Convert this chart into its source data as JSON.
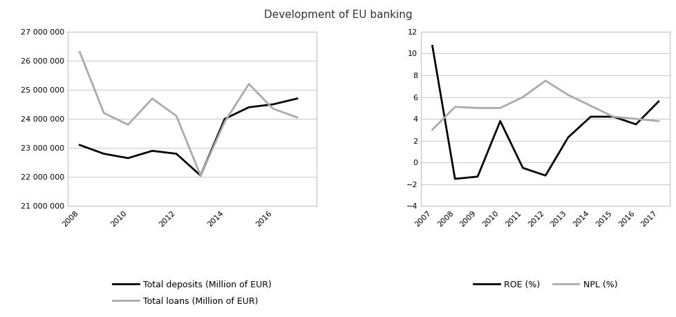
{
  "title": "Development of EU banking",
  "left_chart": {
    "years": [
      2008,
      2009,
      2010,
      2011,
      2012,
      2013,
      2014,
      2015,
      2016,
      2017
    ],
    "deposits": [
      23100000,
      22800000,
      22650000,
      22900000,
      22800000,
      22050000,
      24000000,
      24400000,
      24500000,
      24700000
    ],
    "loans": [
      26300000,
      24200000,
      23800000,
      24700000,
      24100000,
      22050000,
      23900000,
      25200000,
      24350000,
      24050000
    ],
    "deposits_label": "Total deposits (Million of EUR)",
    "loans_label": "Total loans (Million of EUR)",
    "ylim": [
      21000000,
      27000000
    ],
    "yticks": [
      21000000,
      22000000,
      23000000,
      24000000,
      25000000,
      26000000,
      27000000
    ],
    "xticks": [
      2008,
      2010,
      2012,
      2014,
      2016
    ],
    "xlim": [
      2007.5,
      2017.8
    ],
    "deposits_color": "#000000",
    "loans_color": "#aaaaaa"
  },
  "right_chart": {
    "years": [
      2007,
      2008,
      2009,
      2010,
      2011,
      2012,
      2013,
      2014,
      2015,
      2016,
      2017
    ],
    "roe": [
      10.7,
      -1.5,
      -1.3,
      3.8,
      -0.5,
      -1.2,
      2.3,
      4.2,
      4.2,
      3.5,
      5.6
    ],
    "npl": [
      3.0,
      5.1,
      5.0,
      5.0,
      6.0,
      7.5,
      6.2,
      5.2,
      4.2,
      4.0,
      3.8
    ],
    "roe_label": "ROE (%)",
    "npl_label": "NPL (%)",
    "ylim": [
      -4,
      12
    ],
    "yticks": [
      -4,
      -2,
      0,
      2,
      4,
      6,
      8,
      10,
      12
    ],
    "xlim": [
      2006.5,
      2017.5
    ],
    "roe_color": "#000000",
    "npl_color": "#aaaaaa"
  },
  "background_color": "#ffffff",
  "grid_color": "#c8c8c8",
  "spine_color": "#c0c0c0",
  "font_color": "#333333",
  "tick_fontsize": 8,
  "legend_fontsize": 9,
  "title_fontsize": 11,
  "line_width": 2.0
}
